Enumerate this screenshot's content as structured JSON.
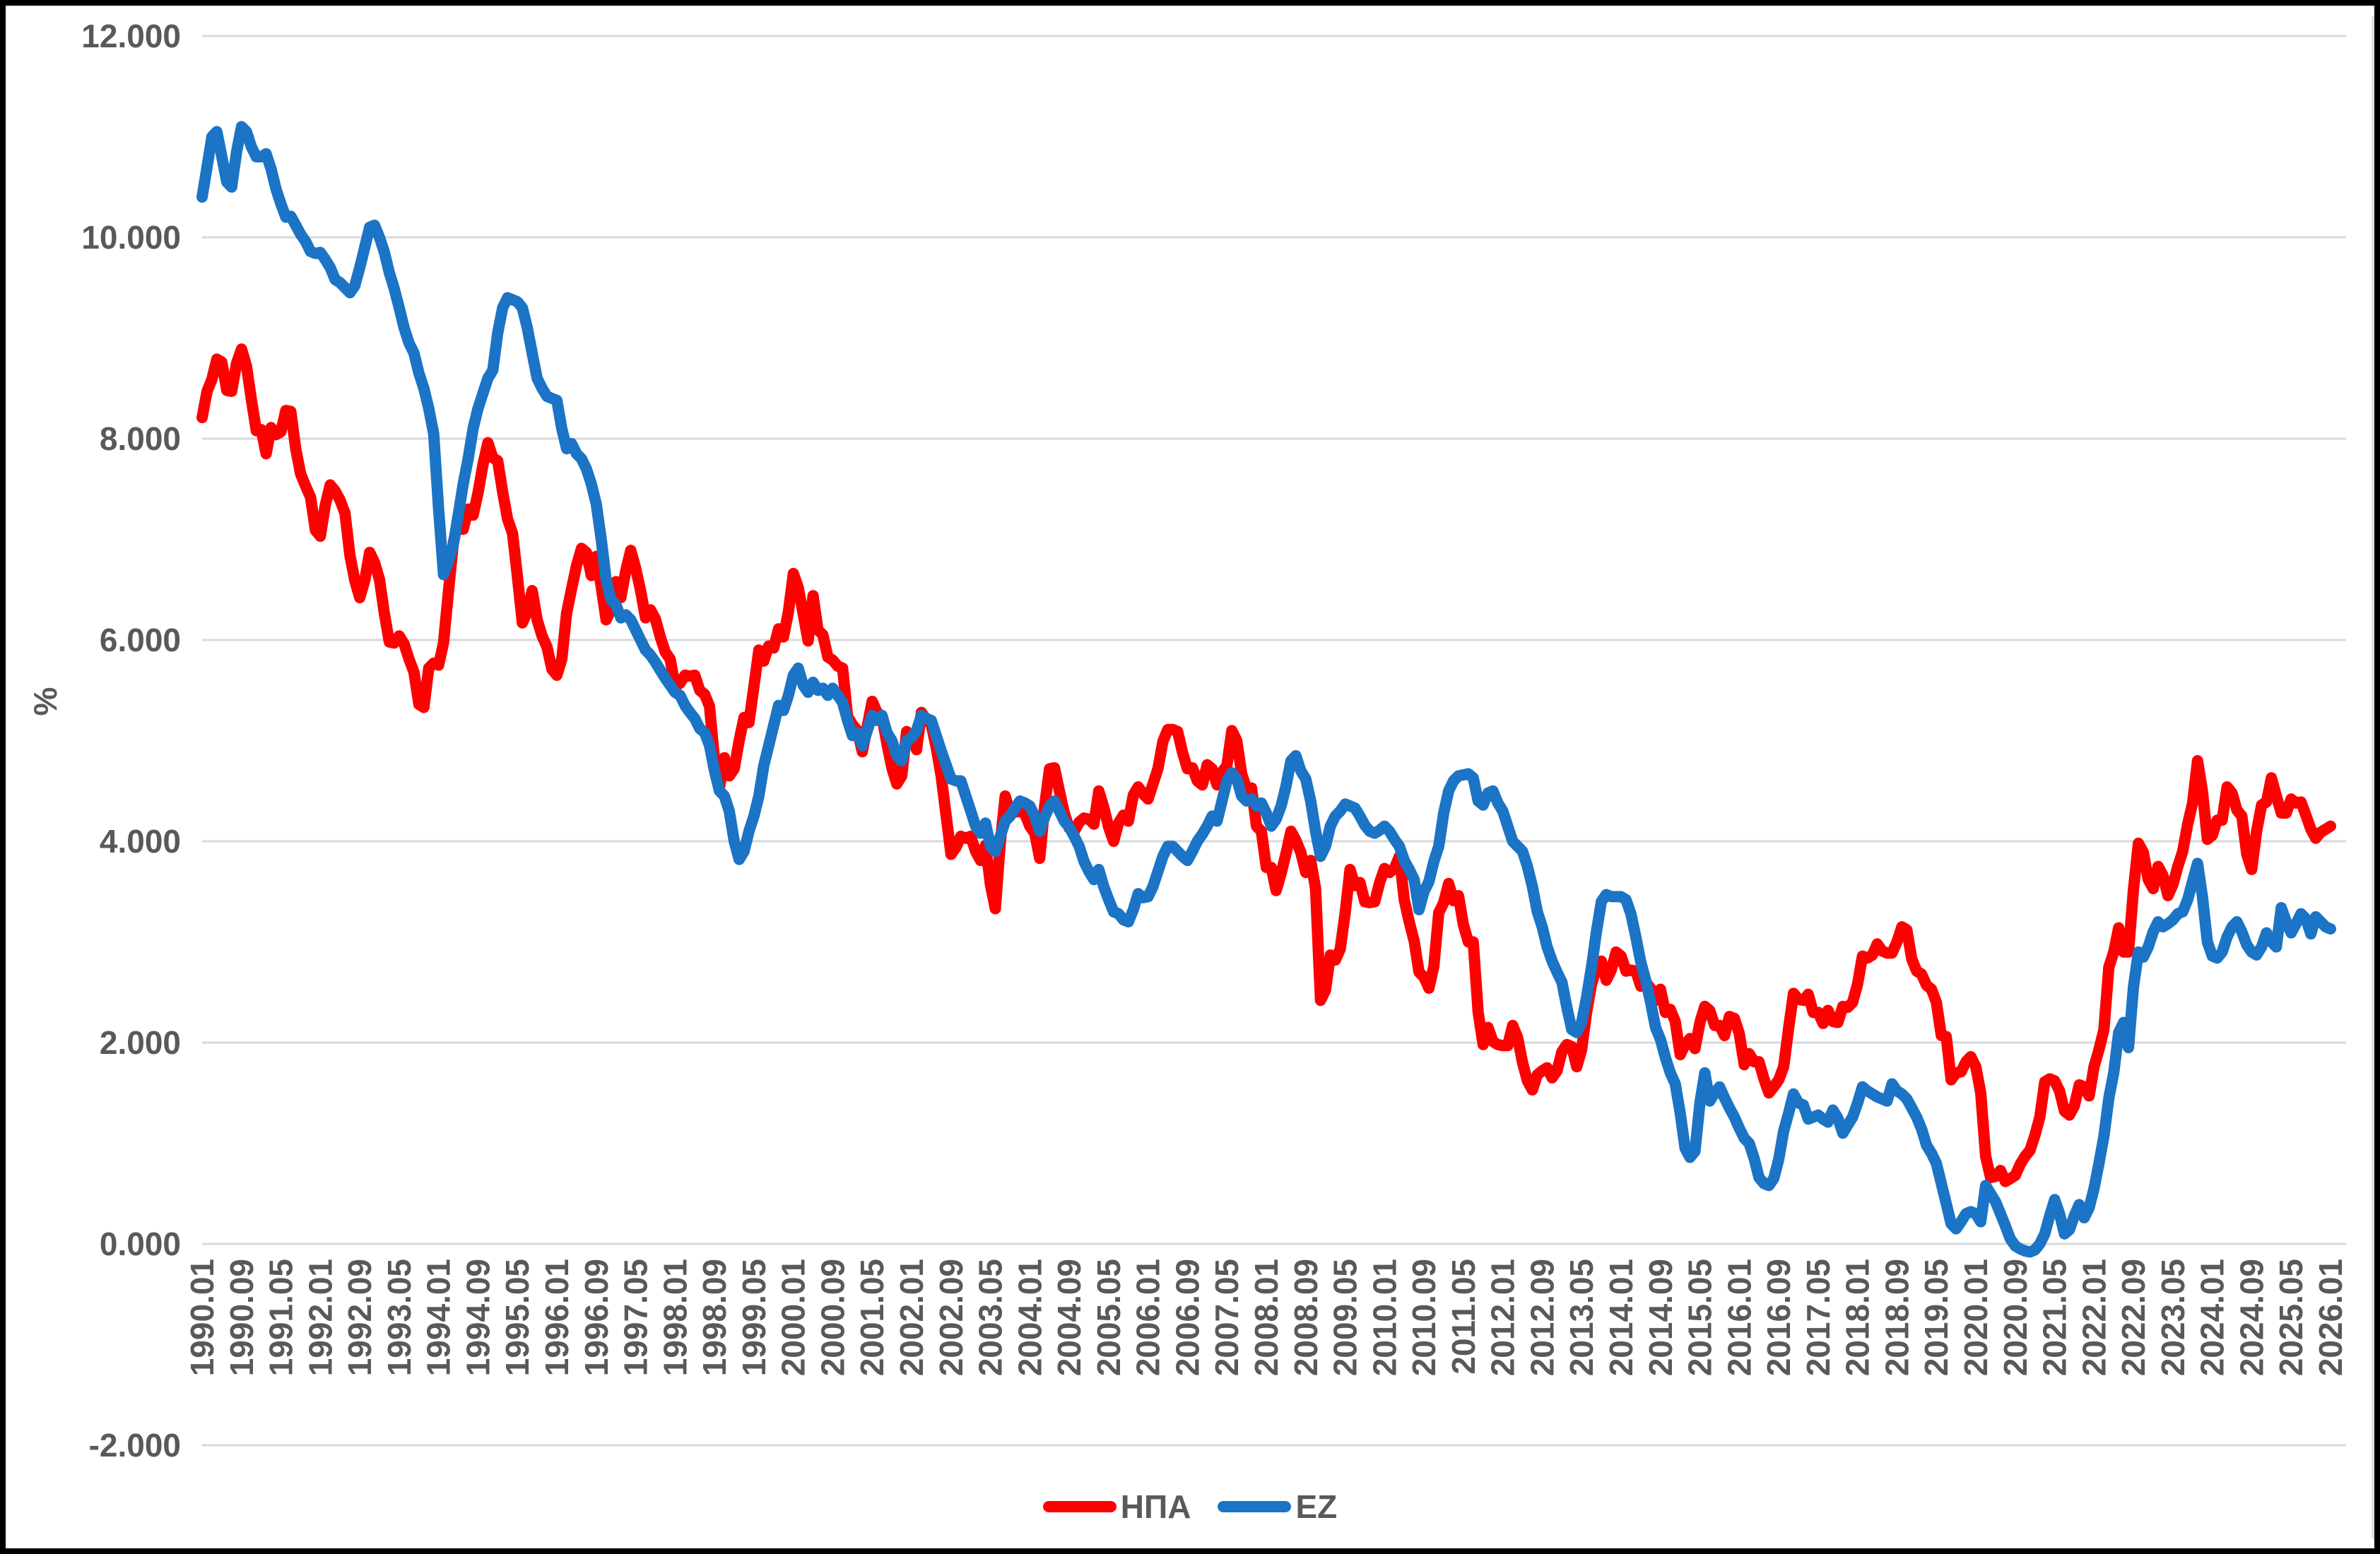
{
  "chart_data": {
    "type": "line",
    "title": "",
    "xlabel": "",
    "ylabel": "%",
    "frequency": "monthly",
    "x_start_label": "1990.01",
    "x_end_label": "2026.01",
    "x_tick_step_months": 8,
    "ylim": [
      -2,
      12
    ],
    "grid": true,
    "legend_position": "bottom",
    "y_ticks": [
      {
        "label": "12.000",
        "value": 12
      },
      {
        "label": "10.000",
        "value": 10
      },
      {
        "label": "8.000",
        "value": 8
      },
      {
        "label": "6.000",
        "value": 6
      },
      {
        "label": "4.000",
        "value": 4
      },
      {
        "label": "2.000",
        "value": 2
      },
      {
        "label": "0.000",
        "value": 0
      },
      {
        "label": "-2.000",
        "value": -2
      }
    ],
    "x_tick_labels": [
      "1990.01",
      "1990.09",
      "1991.05",
      "1992.01",
      "1992.09",
      "1993.05",
      "1994.01",
      "1994.09",
      "1995.05",
      "1996.01",
      "1996.09",
      "1997.05",
      "1998.01",
      "1998.09",
      "1999.05",
      "2000.01",
      "2000.09",
      "2001.05",
      "2002.01",
      "2002.09",
      "2003.05",
      "2004.01",
      "2004.09",
      "2005.05",
      "2006.01",
      "2006.09",
      "2007.05",
      "2008.01",
      "2008.09",
      "2009.05",
      "2010.01",
      "2010.09",
      "2011.05",
      "2012.01",
      "2012.09",
      "2013.05",
      "2014.01",
      "2014.09",
      "2015.05",
      "2016.01",
      "2016.09",
      "2017.05",
      "2018.01",
      "2018.09",
      "2019.05",
      "2020.01",
      "2020.09",
      "2021.05",
      "2022.01",
      "2022.09",
      "2023.05",
      "2024.01",
      "2024.09",
      "2025.05",
      "2026.01"
    ],
    "colors": {
      "grid": "#D9D9D9",
      "axis_text": "#595959",
      "frame": "#000000",
      "background": "#FFFFFF",
      "series_usa": "#FF0000",
      "series_ez": "#1B74C5"
    },
    "series": [
      {
        "name": "ΗΠΑ",
        "color": "#FF0000",
        "start": "1990.01",
        "values": [
          8.21,
          8.47,
          8.59,
          8.79,
          8.76,
          8.48,
          8.47,
          8.75,
          8.89,
          8.72,
          8.39,
          8.08,
          8.09,
          7.85,
          8.11,
          8.04,
          8.07,
          8.28,
          8.27,
          7.9,
          7.65,
          7.53,
          7.42,
          7.09,
          7.03,
          7.34,
          7.54,
          7.48,
          7.39,
          7.26,
          6.84,
          6.59,
          6.42,
          6.59,
          6.87,
          6.77,
          6.6,
          6.26,
          5.98,
          5.97,
          6.04,
          5.96,
          5.81,
          5.68,
          5.36,
          5.33,
          5.72,
          5.77,
          5.75,
          5.97,
          6.48,
          6.97,
          7.18,
          7.1,
          7.3,
          7.24,
          7.46,
          7.74,
          7.96,
          7.81,
          7.78,
          7.47,
          7.2,
          7.06,
          6.63,
          6.17,
          6.28,
          6.49,
          6.2,
          6.04,
          5.93,
          5.71,
          5.65,
          5.81,
          6.27,
          6.51,
          6.74,
          6.91,
          6.87,
          6.64,
          6.83,
          6.53,
          6.2,
          6.3,
          6.58,
          6.42,
          6.69,
          6.89,
          6.71,
          6.49,
          6.22,
          6.3,
          6.21,
          6.03,
          5.88,
          5.81,
          5.54,
          5.57,
          5.65,
          5.64,
          5.65,
          5.5,
          5.46,
          5.34,
          4.81,
          4.53,
          4.83,
          4.65,
          4.72,
          5.0,
          5.23,
          5.18,
          5.54,
          5.9,
          5.79,
          5.94,
          5.92,
          6.11,
          6.03,
          6.28,
          6.66,
          6.52,
          6.26,
          5.99,
          6.44,
          6.1,
          6.05,
          5.83,
          5.8,
          5.74,
          5.72,
          5.24,
          5.16,
          5.1,
          4.89,
          5.14,
          5.39,
          5.28,
          5.24,
          4.97,
          4.73,
          4.57,
          4.65,
          5.09,
          5.04,
          4.91,
          5.28,
          5.21,
          5.16,
          4.93,
          4.65,
          4.26,
          3.87,
          3.94,
          4.05,
          4.03,
          4.05,
          3.9,
          3.81,
          3.96,
          3.57,
          3.33,
          3.98,
          4.45,
          4.27,
          4.29,
          4.3,
          4.27,
          4.15,
          4.08,
          3.83,
          4.35,
          4.72,
          4.73,
          4.5,
          4.28,
          4.13,
          4.1,
          4.19,
          4.23,
          4.22,
          4.17,
          4.5,
          4.34,
          4.14,
          4.0,
          4.18,
          4.26,
          4.2,
          4.46,
          4.54,
          4.47,
          4.42,
          4.57,
          4.72,
          4.99,
          5.11,
          5.11,
          5.09,
          4.88,
          4.72,
          4.73,
          4.6,
          4.56,
          4.76,
          4.72,
          4.56,
          4.69,
          4.75,
          5.1,
          5.0,
          4.67,
          4.52,
          4.53,
          4.15,
          4.1,
          3.74,
          3.74,
          3.51,
          3.68,
          3.88,
          4.1,
          4.01,
          3.89,
          3.69,
          3.81,
          3.53,
          2.42,
          2.52,
          2.87,
          2.82,
          2.93,
          3.29,
          3.72,
          3.56,
          3.59,
          3.4,
          3.39,
          3.4,
          3.59,
          3.73,
          3.69,
          3.73,
          3.85,
          3.42,
          3.2,
          3.01,
          2.7,
          2.65,
          2.54,
          2.76,
          3.29,
          3.39,
          3.58,
          3.41,
          3.46,
          3.17,
          3.0,
          3.0,
          2.3,
          1.98,
          2.15,
          2.01,
          1.98,
          1.97,
          1.97,
          2.17,
          2.05,
          1.8,
          1.62,
          1.53,
          1.68,
          1.72,
          1.75,
          1.65,
          1.72,
          1.91,
          1.98,
          1.96,
          1.76,
          1.93,
          2.3,
          2.58,
          2.74,
          2.81,
          2.62,
          2.72,
          2.9,
          2.86,
          2.71,
          2.72,
          2.71,
          2.56,
          2.6,
          2.54,
          2.42,
          2.53,
          2.3,
          2.33,
          2.21,
          1.88,
          1.98,
          2.04,
          1.94,
          2.2,
          2.36,
          2.32,
          2.17,
          2.17,
          2.07,
          2.26,
          2.24,
          2.09,
          1.78,
          1.89,
          1.81,
          1.81,
          1.64,
          1.5,
          1.56,
          1.63,
          1.76,
          2.14,
          2.49,
          2.43,
          2.42,
          2.48,
          2.3,
          2.3,
          2.19,
          2.32,
          2.21,
          2.2,
          2.36,
          2.35,
          2.4,
          2.58,
          2.86,
          2.84,
          2.87,
          2.98,
          2.91,
          2.89,
          2.89,
          3.0,
          3.15,
          3.12,
          2.83,
          2.71,
          2.68,
          2.57,
          2.53,
          2.4,
          2.07,
          2.06,
          1.63,
          1.7,
          1.71,
          1.81,
          1.86,
          1.76,
          1.5,
          0.87,
          0.66,
          0.67,
          0.73,
          0.62,
          0.65,
          0.68,
          0.79,
          0.87,
          0.93,
          1.08,
          1.26,
          1.61,
          1.64,
          1.62,
          1.52,
          1.32,
          1.28,
          1.37,
          1.58,
          1.56,
          1.47,
          1.76,
          1.93,
          2.13,
          2.75,
          2.9,
          3.14,
          2.9,
          2.9,
          3.52,
          3.98,
          3.89,
          3.62,
          3.53,
          3.75,
          3.66,
          3.46,
          3.57,
          3.75,
          3.9,
          4.17,
          4.38,
          4.8,
          4.5,
          4.02,
          4.06,
          4.21,
          4.21,
          4.54,
          4.48,
          4.31,
          4.25,
          3.87,
          3.72,
          4.1,
          4.36,
          4.39,
          4.63,
          4.45,
          4.28,
          4.28,
          4.42,
          4.38,
          4.39,
          4.26,
          4.12,
          4.03,
          4.09,
          4.12,
          4.15
        ]
      },
      {
        "name": "EZ",
        "color": "#1B74C5",
        "start": "1990.01",
        "values": [
          10.4,
          10.7,
          11.0,
          11.05,
          10.8,
          10.55,
          10.5,
          10.85,
          11.1,
          11.05,
          10.9,
          10.8,
          10.8,
          10.83,
          10.68,
          10.48,
          10.33,
          10.2,
          10.21,
          10.12,
          10.03,
          9.96,
          9.86,
          9.84,
          9.85,
          9.78,
          9.7,
          9.58,
          9.55,
          9.5,
          9.45,
          9.52,
          9.7,
          9.9,
          10.1,
          10.12,
          10.0,
          9.85,
          9.65,
          9.49,
          9.3,
          9.1,
          8.95,
          8.85,
          8.65,
          8.5,
          8.3,
          8.05,
          7.3,
          6.65,
          6.78,
          6.95,
          7.25,
          7.55,
          7.8,
          8.1,
          8.3,
          8.45,
          8.6,
          8.68,
          9.05,
          9.3,
          9.4,
          9.38,
          9.36,
          9.3,
          9.1,
          8.85,
          8.6,
          8.5,
          8.42,
          8.4,
          8.38,
          8.1,
          7.9,
          7.95,
          7.85,
          7.8,
          7.7,
          7.55,
          7.35,
          7.0,
          6.6,
          6.4,
          6.35,
          6.22,
          6.25,
          6.2,
          6.1,
          6.0,
          5.9,
          5.85,
          5.78,
          5.7,
          5.62,
          5.55,
          5.48,
          5.45,
          5.35,
          5.28,
          5.22,
          5.12,
          5.08,
          4.95,
          4.7,
          4.5,
          4.45,
          4.3,
          4.0,
          3.82,
          3.9,
          4.1,
          4.25,
          4.45,
          4.75,
          4.95,
          5.15,
          5.35,
          5.3,
          5.45,
          5.65,
          5.72,
          5.55,
          5.48,
          5.58,
          5.5,
          5.52,
          5.45,
          5.52,
          5.45,
          5.38,
          5.2,
          5.05,
          5.08,
          4.95,
          5.1,
          5.25,
          5.2,
          5.25,
          5.08,
          5.0,
          4.85,
          4.8,
          5.0,
          5.03,
          5.1,
          5.25,
          5.22,
          5.2,
          5.05,
          4.9,
          4.76,
          4.62,
          4.6,
          4.6,
          4.45,
          4.3,
          4.15,
          4.08,
          4.18,
          3.95,
          3.9,
          4.05,
          4.2,
          4.25,
          4.33,
          4.4,
          4.38,
          4.35,
          4.25,
          4.1,
          4.24,
          4.35,
          4.4,
          4.3,
          4.2,
          4.14,
          4.05,
          3.95,
          3.8,
          3.7,
          3.62,
          3.72,
          3.55,
          3.42,
          3.3,
          3.28,
          3.22,
          3.2,
          3.32,
          3.48,
          3.44,
          3.45,
          3.55,
          3.7,
          3.85,
          3.95,
          3.95,
          3.9,
          3.85,
          3.81,
          3.9,
          4.0,
          4.07,
          4.15,
          4.25,
          4.2,
          4.4,
          4.6,
          4.68,
          4.62,
          4.45,
          4.4,
          4.42,
          4.35,
          4.38,
          4.28,
          4.15,
          4.22,
          4.35,
          4.55,
          4.8,
          4.85,
          4.7,
          4.62,
          4.4,
          4.1,
          3.85,
          3.95,
          4.15,
          4.25,
          4.3,
          4.37,
          4.35,
          4.33,
          4.25,
          4.16,
          4.1,
          4.08,
          4.11,
          4.15,
          4.1,
          4.02,
          3.95,
          3.81,
          3.72,
          3.62,
          3.32,
          3.5,
          3.6,
          3.8,
          3.95,
          4.28,
          4.5,
          4.6,
          4.65,
          4.66,
          4.67,
          4.63,
          4.4,
          4.36,
          4.48,
          4.5,
          4.38,
          4.3,
          4.15,
          4.0,
          3.95,
          3.9,
          3.75,
          3.55,
          3.3,
          3.15,
          2.95,
          2.81,
          2.7,
          2.6,
          2.35,
          2.13,
          2.1,
          2.2,
          2.45,
          2.75,
          3.1,
          3.4,
          3.47,
          3.45,
          3.45,
          3.45,
          3.42,
          3.28,
          3.05,
          2.8,
          2.62,
          2.4,
          2.15,
          2.03,
          1.85,
          1.7,
          1.59,
          1.3,
          0.95,
          0.86,
          0.92,
          1.4,
          1.7,
          1.42,
          1.5,
          1.56,
          1.45,
          1.35,
          1.26,
          1.15,
          1.05,
          1.0,
          0.85,
          0.66,
          0.6,
          0.58,
          0.65,
          0.84,
          1.12,
          1.3,
          1.49,
          1.4,
          1.38,
          1.24,
          1.26,
          1.28,
          1.24,
          1.21,
          1.33,
          1.25,
          1.1,
          1.18,
          1.26,
          1.4,
          1.56,
          1.52,
          1.49,
          1.46,
          1.44,
          1.42,
          1.59,
          1.52,
          1.49,
          1.44,
          1.35,
          1.26,
          1.14,
          0.98,
          0.9,
          0.8,
          0.6,
          0.4,
          0.2,
          0.15,
          0.22,
          0.3,
          0.32,
          0.3,
          0.22,
          0.58,
          0.5,
          0.42,
          0.3,
          0.18,
          0.05,
          -0.02,
          -0.05,
          -0.07,
          -0.08,
          -0.06,
          0.0,
          0.1,
          0.28,
          0.44,
          0.3,
          0.1,
          0.14,
          0.28,
          0.39,
          0.26,
          0.36,
          0.55,
          0.8,
          1.07,
          1.45,
          1.7,
          2.1,
          2.2,
          1.95,
          2.55,
          2.9,
          2.85,
          2.95,
          3.1,
          3.2,
          3.15,
          3.18,
          3.22,
          3.28,
          3.3,
          3.42,
          3.6,
          3.78,
          3.45,
          3.0,
          2.86,
          2.84,
          2.9,
          3.05,
          3.15,
          3.2,
          3.1,
          2.97,
          2.9,
          2.87,
          2.95,
          3.09,
          3.0,
          2.95,
          3.34,
          3.2,
          3.09,
          3.18,
          3.28,
          3.23,
          3.08,
          3.25,
          3.2,
          3.15,
          3.13
        ]
      }
    ]
  }
}
